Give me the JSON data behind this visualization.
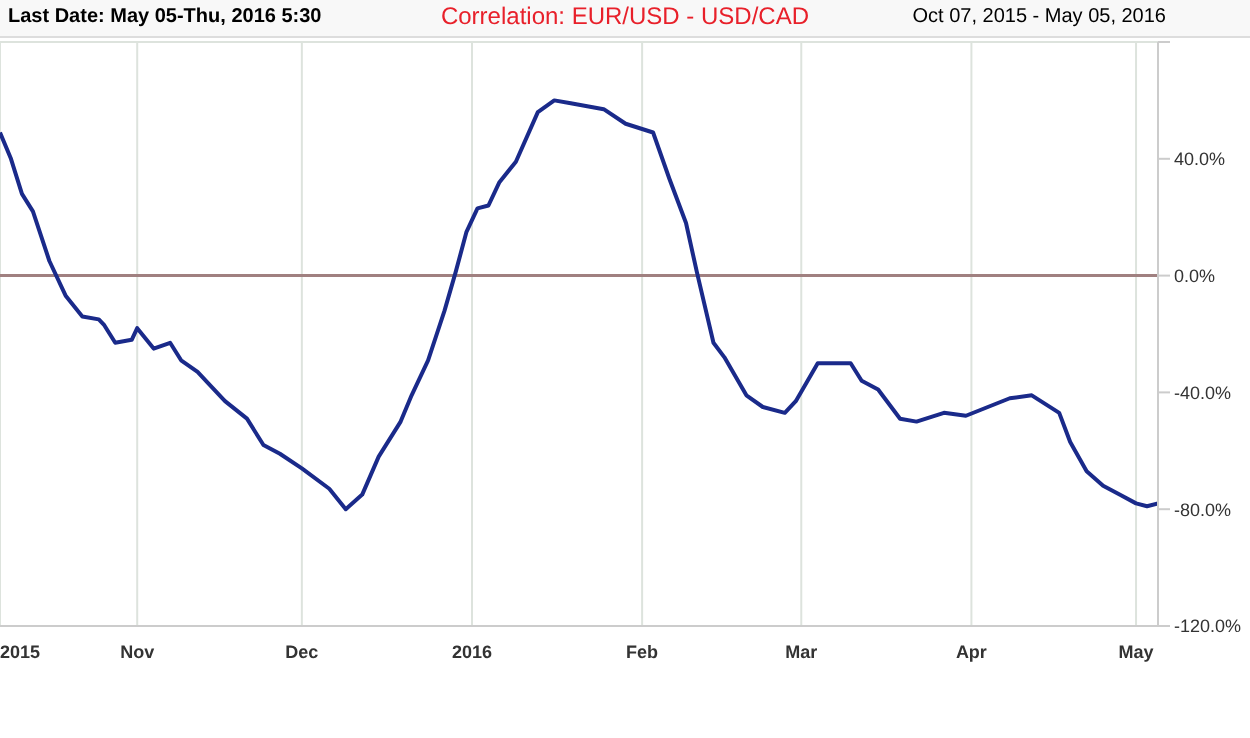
{
  "chart_data": {
    "type": "line",
    "title": "Correlation: EUR/USD - USD/CAD",
    "annotations": [
      "Last Date: May 05-Thu, 2016 5:30",
      "Oct 07, 2015 - May 05, 2016"
    ],
    "x": [
      "2015-10-07",
      "2015-10-09",
      "2015-10-11",
      "2015-10-13",
      "2015-10-16",
      "2015-10-19",
      "2015-10-22",
      "2015-10-25",
      "2015-10-26",
      "2015-10-28",
      "2015-10-31",
      "2015-11-01",
      "2015-11-04",
      "2015-11-07",
      "2015-11-09",
      "2015-11-12",
      "2015-11-14",
      "2015-11-17",
      "2015-11-21",
      "2015-11-24",
      "2015-11-27",
      "2015-12-01",
      "2015-12-06",
      "2015-12-09",
      "2015-12-12",
      "2015-12-15",
      "2015-12-19",
      "2015-12-21",
      "2015-12-24",
      "2015-12-27",
      "2015-12-29",
      "2015-12-31",
      "2016-01-02",
      "2016-01-04",
      "2016-01-06",
      "2016-01-09",
      "2016-01-13",
      "2016-01-16",
      "2016-01-19",
      "2016-01-22",
      "2016-01-25",
      "2016-01-29",
      "2016-02-03",
      "2016-02-06",
      "2016-02-09",
      "2016-02-11",
      "2016-02-14",
      "2016-02-16",
      "2016-02-20",
      "2016-02-23",
      "2016-02-27",
      "2016-02-29",
      "2016-03-04",
      "2016-03-10",
      "2016-03-12",
      "2016-03-15",
      "2016-03-19",
      "2016-03-22",
      "2016-03-27",
      "2016-03-31",
      "2016-04-04",
      "2016-04-08",
      "2016-04-12",
      "2016-04-17",
      "2016-04-19",
      "2016-04-22",
      "2016-04-25",
      "2016-04-28",
      "2016-05-01",
      "2016-05-03",
      "2016-05-05"
    ],
    "series": [
      {
        "color": "#1a2a8a",
        "values": [
          49,
          40,
          28,
          22,
          5,
          -7,
          -14,
          -15,
          -17,
          -23,
          -22,
          -18,
          -25,
          -23,
          -29,
          -33,
          -37,
          -43,
          -49,
          -58,
          -61,
          -66,
          -73,
          -80,
          -75,
          -62,
          -50,
          -41,
          -29,
          -12,
          1,
          15,
          23,
          24,
          32,
          39,
          56,
          60,
          59,
          58,
          57,
          52,
          49,
          33,
          18,
          1,
          -23,
          -28,
          -41,
          -45,
          -47,
          -43,
          -30,
          -30,
          -36,
          -39,
          -49,
          -50,
          -47,
          -48,
          -45,
          -42,
          -41,
          -47,
          -57,
          -67,
          -72,
          -75,
          -78,
          -79,
          -78
        ]
      }
    ],
    "xlim": [
      "2015-10-07",
      "2016-05-05"
    ],
    "xticks": [
      {
        "value": "2015-10-07",
        "label": "2015"
      },
      {
        "value": "2015-11-01",
        "label": "Nov"
      },
      {
        "value": "2015-12-01",
        "label": "Dec"
      },
      {
        "value": "2016-01-01",
        "label": "2016"
      },
      {
        "value": "2016-02-01",
        "label": "Feb"
      },
      {
        "value": "2016-03-01",
        "label": "Mar"
      },
      {
        "value": "2016-04-01",
        "label": "Apr"
      },
      {
        "value": "2016-05-01",
        "label": "May"
      }
    ],
    "ylim": [
      -120,
      80
    ],
    "yticks": [
      {
        "value": 80,
        "label": null
      },
      {
        "value": 40,
        "label": "40.0%"
      },
      {
        "value": 0,
        "label": "0.0%"
      },
      {
        "value": -40,
        "label": "-40.0%"
      },
      {
        "value": -80,
        "label": "-80.0%"
      },
      {
        "value": -120,
        "label": "-120.0%"
      }
    ],
    "ref_lines": [
      {
        "axis": "y",
        "value": 0,
        "color": "#a08080"
      }
    ],
    "grid": true,
    "marker": "none",
    "line_style": "solid"
  }
}
